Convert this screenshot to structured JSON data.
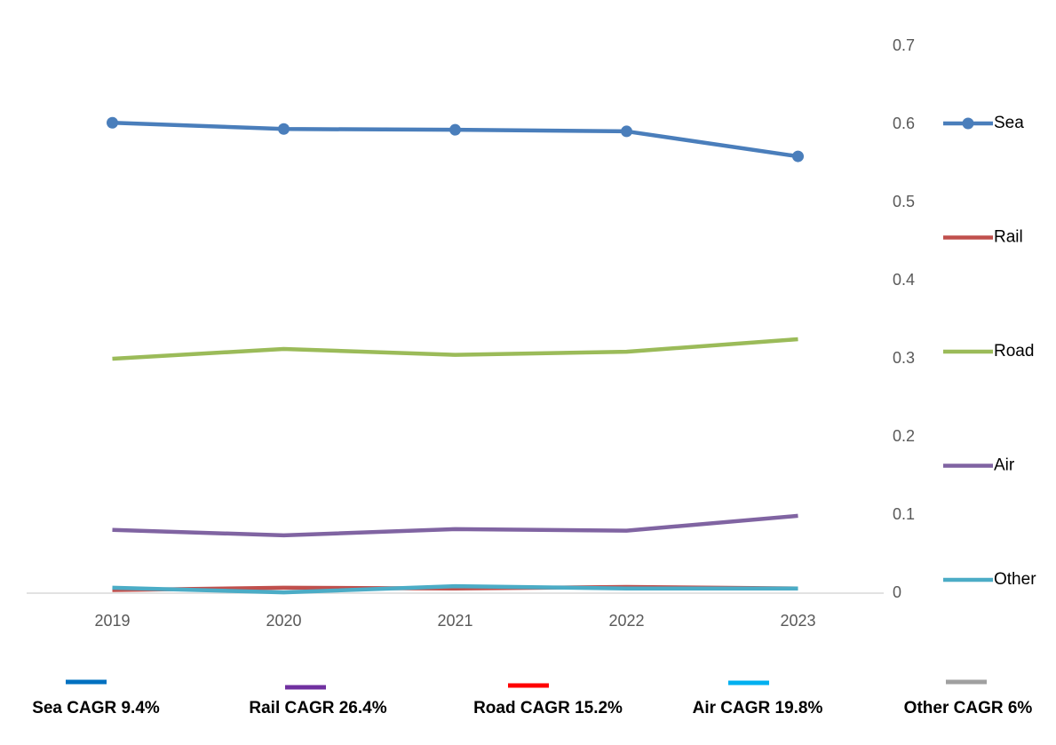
{
  "chart_data": {
    "type": "line",
    "categories": [
      "2019",
      "2020",
      "2021",
      "2022",
      "2023"
    ],
    "series": [
      {
        "name": "Sea",
        "color": "#4a7ebb",
        "marker": true,
        "values": [
          0.602,
          0.594,
          0.593,
          0.591,
          0.559
        ]
      },
      {
        "name": "Rail",
        "color": "#c0504d",
        "marker": false,
        "values": [
          0.004,
          0.007,
          0.006,
          0.008,
          0.006
        ]
      },
      {
        "name": "Road",
        "color": "#9bbb59",
        "marker": false,
        "values": [
          0.3,
          0.3125,
          0.305,
          0.309,
          0.325
        ]
      },
      {
        "name": "Air",
        "color": "#8064a2",
        "marker": false,
        "values": [
          0.081,
          0.074,
          0.082,
          0.08,
          0.099
        ]
      },
      {
        "name": "Other",
        "color": "#4bacc6",
        "marker": false,
        "values": [
          0.007,
          0.001,
          0.009,
          0.006,
          0.006
        ]
      }
    ],
    "ylim": [
      0,
      0.7
    ],
    "yticks": [
      0,
      0.1,
      0.2,
      0.3,
      0.4,
      0.5,
      0.6,
      0.7
    ],
    "grid": false,
    "legend": "right",
    "annotations": [
      {
        "text": "Sea CAGR 9.4%",
        "color": "#0070c0"
      },
      {
        "text": "Rail CAGR 26.4%",
        "color": "#7030a0"
      },
      {
        "text": "Road CAGR 15.2%",
        "color": "#ff0000"
      },
      {
        "text": "Air CAGR 19.8%",
        "color": "#00b0f0"
      },
      {
        "text": "Other CAGR 6%",
        "color": "#a0a0a0"
      }
    ]
  }
}
